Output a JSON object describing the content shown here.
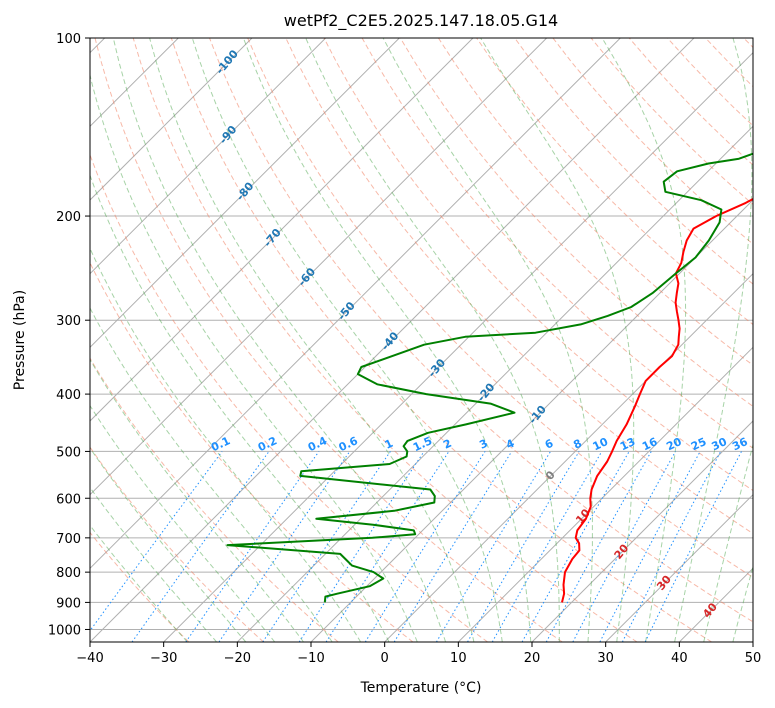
{
  "chart_data": {
    "type": "line",
    "title": "wetPf2_C2E5.2025.147.18.05.G14",
    "xlabel": "Temperature (°C)",
    "ylabel": "Pressure (hPa)",
    "xlim": [
      -40,
      50
    ],
    "ylim": [
      1050,
      100
    ],
    "y_scale": "log",
    "x_ticks": [
      -40,
      -30,
      -20,
      -10,
      0,
      10,
      20,
      30,
      40,
      50
    ],
    "y_ticks": [
      100,
      200,
      300,
      400,
      500,
      600,
      700,
      800,
      900,
      1000
    ],
    "grid": true,
    "series": [
      {
        "kind": "temperature",
        "color": "#ff0000",
        "points": [
          [
            18.7,
            900
          ],
          [
            17.8,
            870
          ],
          [
            16.5,
            840
          ],
          [
            15.0,
            800
          ],
          [
            14.2,
            760
          ],
          [
            14.0,
            735
          ],
          [
            13.0,
            715
          ],
          [
            11.8,
            700
          ],
          [
            11.0,
            680
          ],
          [
            10.6,
            650
          ],
          [
            9.6,
            620
          ],
          [
            8.4,
            600
          ],
          [
            7.4,
            580
          ],
          [
            6.3,
            550
          ],
          [
            5.7,
            520
          ],
          [
            5.0,
            500
          ],
          [
            4.2,
            480
          ],
          [
            3.3,
            450
          ],
          [
            2.0,
            420
          ],
          [
            1.0,
            400
          ],
          [
            0.0,
            380
          ],
          [
            0.0,
            360
          ],
          [
            0.2,
            345
          ],
          [
            -0.5,
            330
          ],
          [
            -1.5,
            320
          ],
          [
            -2.5,
            310
          ],
          [
            -3.8,
            300
          ],
          [
            -5.2,
            290
          ],
          [
            -6.6,
            280
          ],
          [
            -7.7,
            270
          ],
          [
            -8.8,
            260
          ],
          [
            -10.5,
            250
          ],
          [
            -11.2,
            240
          ],
          [
            -12.4,
            230
          ],
          [
            -13.5,
            220
          ],
          [
            -14.2,
            210
          ],
          [
            -12.8,
            200
          ],
          [
            -10.6,
            190
          ],
          [
            -9.0,
            180
          ],
          [
            -7.6,
            172
          ],
          [
            -6.6,
            165
          ],
          [
            -5.6,
            160
          ],
          [
            -5.4,
            155
          ],
          [
            -5.0,
            150
          ],
          [
            -4.4,
            145
          ],
          [
            -3.2,
            140
          ],
          [
            -1.8,
            135
          ],
          [
            0.0,
            130
          ],
          [
            0.5,
            125
          ],
          [
            1.2,
            120
          ],
          [
            2.0,
            115
          ],
          [
            2.6,
            110
          ],
          [
            3.0,
            105
          ],
          [
            3.8,
            100
          ]
        ]
      },
      {
        "kind": "dewpoint",
        "color": "#008000",
        "points": [
          [
            -13.5,
            900
          ],
          [
            -14.2,
            880
          ],
          [
            -13.0,
            870
          ],
          [
            -9.6,
            845
          ],
          [
            -8.8,
            820
          ],
          [
            -11.0,
            800
          ],
          [
            -14.8,
            780
          ],
          [
            -16.6,
            760
          ],
          [
            -18.0,
            745
          ],
          [
            -34.5,
            720
          ],
          [
            -15.8,
            700
          ],
          [
            -10.5,
            690
          ],
          [
            -11.2,
            680
          ],
          [
            -17.5,
            665
          ],
          [
            -26.0,
            650
          ],
          [
            -16.5,
            630
          ],
          [
            -12.2,
            610
          ],
          [
            -13.0,
            595
          ],
          [
            -14.5,
            580
          ],
          [
            -34.0,
            550
          ],
          [
            -34.5,
            540
          ],
          [
            -23.5,
            525
          ],
          [
            -22.2,
            510
          ],
          [
            -22.8,
            500
          ],
          [
            -24.0,
            490
          ],
          [
            -24.2,
            480
          ],
          [
            -22.5,
            465
          ],
          [
            -18.5,
            450
          ],
          [
            -13.5,
            430
          ],
          [
            -18.0,
            415
          ],
          [
            -28.0,
            400
          ],
          [
            -36.0,
            385
          ],
          [
            -40.0,
            370
          ],
          [
            -40.5,
            360
          ],
          [
            -35.0,
            330
          ],
          [
            -30.5,
            320
          ],
          [
            -21.5,
            315
          ],
          [
            -16.5,
            305
          ],
          [
            -14.0,
            295
          ],
          [
            -12.0,
            285
          ],
          [
            -11.0,
            270
          ],
          [
            -10.5,
            250
          ],
          [
            -10.0,
            235
          ],
          [
            -10.5,
            220
          ],
          [
            -11.5,
            205
          ],
          [
            -13.0,
            195
          ],
          [
            -17.0,
            188
          ],
          [
            -23.0,
            182
          ],
          [
            -24.6,
            175
          ],
          [
            -24.2,
            168
          ],
          [
            -21.0,
            163
          ],
          [
            -17.5,
            160
          ],
          [
            -15.5,
            155
          ],
          [
            -13.5,
            150
          ],
          [
            -11.5,
            145
          ],
          [
            -10.2,
            140
          ],
          [
            -9.0,
            135
          ],
          [
            -7.8,
            130
          ],
          [
            -6.6,
            125
          ],
          [
            -5.6,
            120
          ],
          [
            -4.6,
            115
          ],
          [
            -3.8,
            110
          ],
          [
            -2.8,
            105
          ],
          [
            -1.6,
            100
          ]
        ]
      }
    ],
    "isotherm_step": 10,
    "mixing_ratio_labels": [
      "0.1",
      "0.2",
      "0.4",
      "0.6",
      "1",
      "1.5",
      "2",
      "3",
      "4",
      "6",
      "8",
      "10",
      "13",
      "16",
      "20",
      "25",
      "30",
      "36"
    ],
    "dry_adiabat_labels": [
      "-100",
      "-90",
      "-80",
      "-70",
      "-60",
      "-50",
      "-40",
      "-30",
      "-20",
      "-10"
    ],
    "moist_adiabat_labels": [
      "0",
      "10",
      "20",
      "30",
      "40"
    ],
    "colors": {
      "isotherm": "#b0b0b0",
      "dry_adiabat": "#f08060",
      "moist_adiabat": "#50a850",
      "mixing_ratio": "#1e90ff",
      "dry_adiabat_label": "#1f77b4",
      "moist_adiabat_label": "#d62728",
      "zero_label": "#7f7f7f"
    }
  }
}
